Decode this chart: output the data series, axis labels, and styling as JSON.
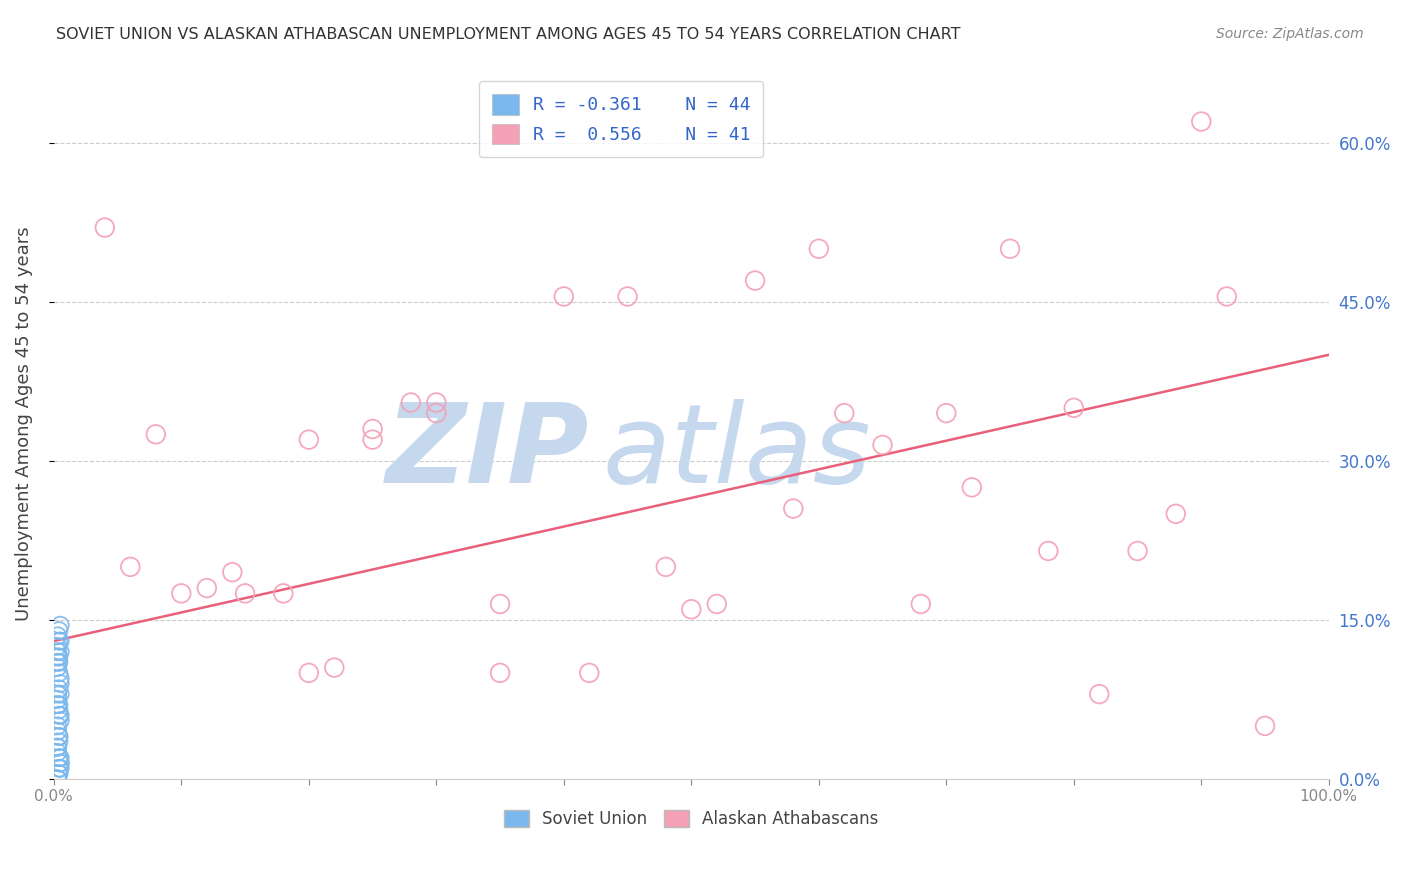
{
  "title": "SOVIET UNION VS ALASKAN ATHABASCAN UNEMPLOYMENT AMONG AGES 45 TO 54 YEARS CORRELATION CHART",
  "source": "Source: ZipAtlas.com",
  "ylabel": "Unemployment Among Ages 45 to 54 years",
  "xlim": [
    0.0,
    1.0
  ],
  "ylim": [
    0.0,
    0.67
  ],
  "yticks": [
    0.0,
    0.15,
    0.3,
    0.45,
    0.6
  ],
  "ytick_labels_right": [
    "0.0%",
    "15.0%",
    "30.0%",
    "45.0%",
    "60.0%"
  ],
  "xticks": [
    0.0,
    0.1,
    0.2,
    0.3,
    0.4,
    0.5,
    0.6,
    0.7,
    0.8,
    0.9,
    1.0
  ],
  "xtick_labels": [
    "0.0%",
    "",
    "",
    "",
    "",
    "",
    "",
    "",
    "",
    "",
    "100.0%"
  ],
  "soviet_color": "#7BB8EE",
  "athabascan_color": "#F4A0B5",
  "trendline_color": "#E8607A",
  "watermark_zip": "ZIP",
  "watermark_atlas": "atlas",
  "watermark_color": "#C5D8EE",
  "soviet_x": [
    0.003,
    0.004,
    0.003,
    0.005,
    0.004,
    0.003,
    0.005,
    0.004,
    0.003,
    0.004,
    0.005,
    0.003,
    0.004,
    0.005,
    0.003,
    0.004,
    0.003,
    0.005,
    0.004,
    0.003,
    0.004,
    0.005,
    0.003,
    0.004,
    0.003,
    0.005,
    0.004,
    0.003,
    0.004,
    0.005,
    0.003,
    0.004,
    0.005,
    0.003,
    0.004,
    0.003,
    0.005,
    0.004,
    0.003,
    0.004,
    0.005,
    0.003,
    0.004,
    0.005
  ],
  "soviet_y": [
    0.135,
    0.14,
    0.12,
    0.13,
    0.11,
    0.125,
    0.145,
    0.1,
    0.115,
    0.13,
    0.09,
    0.08,
    0.07,
    0.06,
    0.05,
    0.04,
    0.03,
    0.02,
    0.01,
    0.0,
    0.005,
    0.015,
    0.025,
    0.035,
    0.045,
    0.055,
    0.065,
    0.075,
    0.085,
    0.095,
    0.105,
    0.115,
    0.08,
    0.07,
    0.06,
    0.11,
    0.12,
    0.04,
    0.03,
    0.02,
    0.01,
    0.0,
    0.005,
    0.015
  ],
  "athabascan_x": [
    0.04,
    0.08,
    0.06,
    0.12,
    0.14,
    0.18,
    0.2,
    0.22,
    0.25,
    0.28,
    0.3,
    0.35,
    0.4,
    0.45,
    0.5,
    0.55,
    0.6,
    0.65,
    0.7,
    0.75,
    0.8,
    0.85,
    0.9,
    0.92,
    0.95,
    0.1,
    0.15,
    0.2,
    0.25,
    0.3,
    0.35,
    0.42,
    0.48,
    0.52,
    0.58,
    0.62,
    0.68,
    0.72,
    0.78,
    0.82,
    0.88
  ],
  "athabascan_y": [
    0.52,
    0.325,
    0.2,
    0.18,
    0.195,
    0.175,
    0.32,
    0.105,
    0.33,
    0.355,
    0.345,
    0.165,
    0.455,
    0.455,
    0.16,
    0.47,
    0.5,
    0.315,
    0.345,
    0.5,
    0.35,
    0.215,
    0.62,
    0.455,
    0.05,
    0.175,
    0.175,
    0.1,
    0.32,
    0.355,
    0.1,
    0.1,
    0.2,
    0.165,
    0.255,
    0.345,
    0.165,
    0.275,
    0.215,
    0.08,
    0.25
  ],
  "trendline_x": [
    0.0,
    1.0
  ],
  "trendline_y": [
    0.13,
    0.4
  ],
  "background_color": "#FFFFFF",
  "grid_color": "#CCCCCC",
  "title_color": "#333333",
  "axis_label_color": "#444444",
  "tick_color_right": "#4477CC",
  "tick_color_bottom": "#888888",
  "source_color": "#888888",
  "legend_text_color": "#3366CC",
  "bottom_legend_text_color": "#444444"
}
